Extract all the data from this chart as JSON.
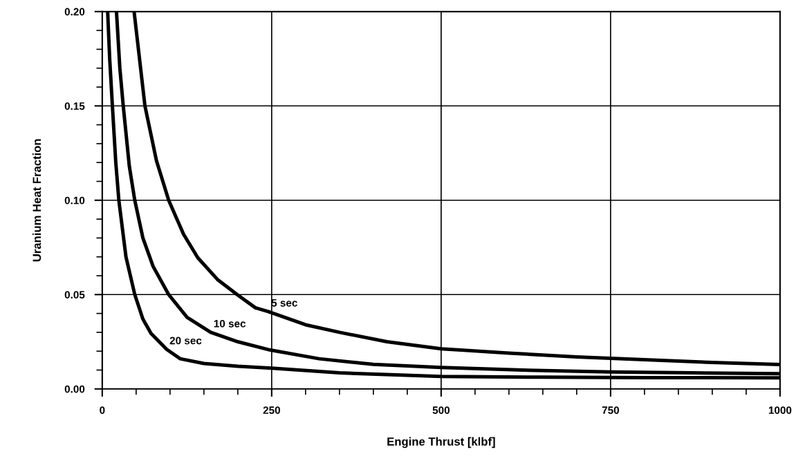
{
  "chart_data": {
    "type": "line",
    "xlabel": "Engine Thrust [klbf]",
    "ylabel": "Uranium Heat Fraction",
    "xlim": [
      0,
      1000
    ],
    "xticks": [
      0,
      250,
      500,
      750,
      1000
    ],
    "ylim": [
      0,
      0.2
    ],
    "yticks": [
      {
        "value": 0,
        "label": "0.00"
      },
      {
        "value": 0.05,
        "label": "0.05"
      },
      {
        "value": 0.1,
        "label": "0.10"
      },
      {
        "value": 0.15,
        "label": "0.15"
      },
      {
        "value": 0.2,
        "label": "0.20"
      }
    ],
    "grid": true,
    "legend": false,
    "marker": "none",
    "line_style": "solid",
    "series": [
      {
        "name": "5 sec",
        "color": "#000000",
        "x": [
          47,
          63,
          80,
          98,
          120,
          141,
          170,
          199,
          226,
          245,
          300,
          350,
          420,
          500,
          600,
          700,
          800,
          900,
          1000
        ],
        "values": [
          0.2,
          0.15,
          0.121,
          0.1,
          0.082,
          0.0695,
          0.058,
          0.05,
          0.043,
          0.041,
          0.034,
          0.03,
          0.025,
          0.0213,
          0.019,
          0.017,
          0.0155,
          0.014,
          0.0129
        ]
      },
      {
        "name": "10 sec",
        "color": "#000000",
        "x": [
          21,
          26,
          31,
          40,
          48,
          60,
          75,
          98,
          125,
          160,
          200,
          248,
          320,
          400,
          500,
          620,
          750,
          870,
          1000
        ],
        "values": [
          0.2,
          0.17,
          0.15,
          0.118,
          0.1,
          0.08,
          0.065,
          0.05,
          0.038,
          0.03,
          0.025,
          0.0206,
          0.016,
          0.013,
          0.0114,
          0.01,
          0.009,
          0.0085,
          0.0081
        ]
      },
      {
        "name": "20 sec",
        "color": "#000000",
        "x": [
          8,
          11,
          15,
          20,
          24.5,
          35,
          48,
          60,
          72,
          95,
          115,
          150,
          200,
          250,
          350,
          500,
          650,
          800,
          1000
        ],
        "values": [
          0.2,
          0.175,
          0.15,
          0.12,
          0.1,
          0.07,
          0.05,
          0.037,
          0.0294,
          0.021,
          0.016,
          0.0135,
          0.012,
          0.011,
          0.0085,
          0.0066,
          0.0062,
          0.006,
          0.0059
        ]
      }
    ]
  }
}
